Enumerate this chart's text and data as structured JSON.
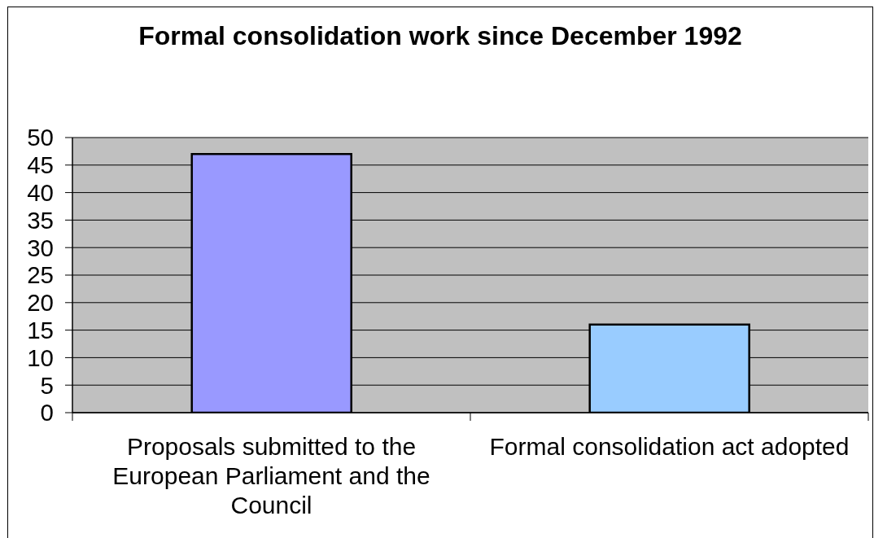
{
  "chart_data": {
    "type": "bar",
    "title": "Formal consolidation work since December 1992",
    "categories": [
      "Proposals submitted to the European Parliament and the Council",
      "Formal consolidation act adopted"
    ],
    "values": [
      47,
      16
    ],
    "colors": [
      "#9999ff",
      "#99ccff"
    ],
    "ylim": [
      0,
      50
    ],
    "yticks": [
      0,
      5,
      10,
      15,
      20,
      25,
      30,
      35,
      40,
      45,
      50
    ],
    "grid": "y"
  }
}
